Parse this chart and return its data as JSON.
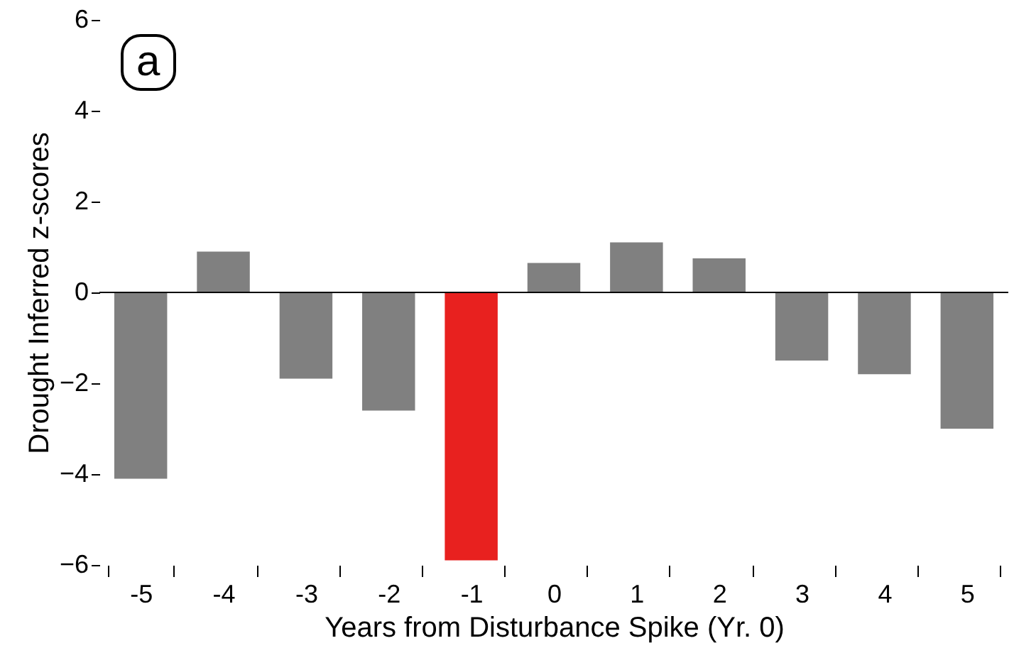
{
  "chart_data": {
    "type": "bar",
    "xlabel": "Years from Disturbance Spike (Yr. 0)",
    "ylabel": "Drought Inferred z-scores",
    "categories": [
      "-5",
      "-4",
      "-3",
      "-2",
      "-1",
      "0",
      "1",
      "2",
      "3",
      "4",
      "5"
    ],
    "values": [
      -4.1,
      0.9,
      -1.9,
      -2.6,
      -5.9,
      0.65,
      1.1,
      0.75,
      -1.5,
      -1.8,
      -3.0
    ],
    "colors": [
      "#808080",
      "#808080",
      "#808080",
      "#808080",
      "#e8211f",
      "#808080",
      "#808080",
      "#808080",
      "#808080",
      "#808080",
      "#808080"
    ],
    "ylim": [
      -6,
      6
    ],
    "yticks": [
      -6,
      -4,
      -2,
      0,
      2,
      4,
      6
    ],
    "grid": false,
    "ref_lines": [
      {
        "axis": "y",
        "value": 0,
        "color": "#000000"
      }
    ],
    "annotations": [
      "a"
    ]
  }
}
